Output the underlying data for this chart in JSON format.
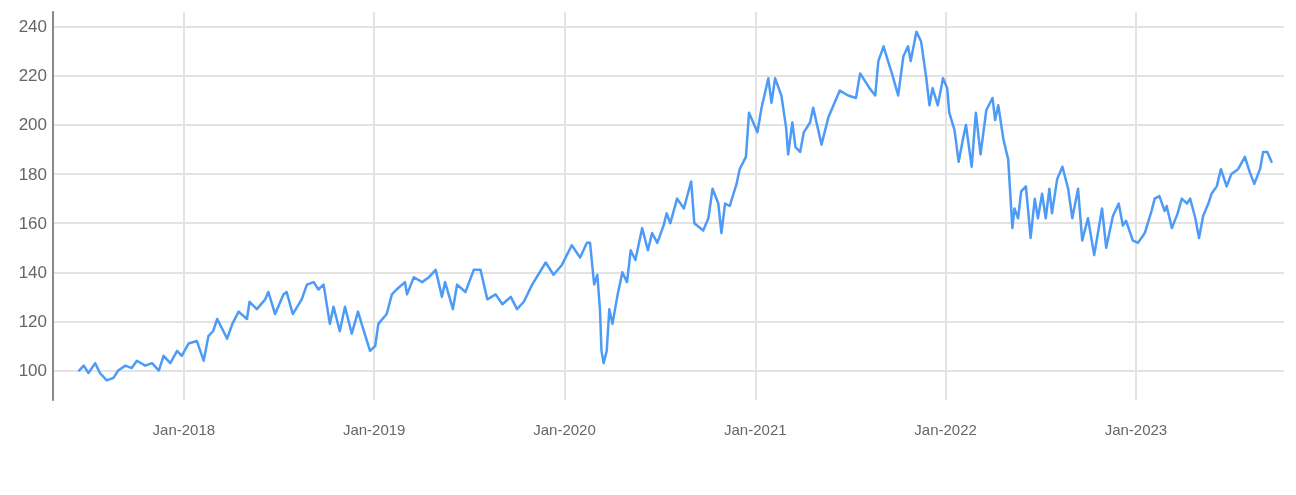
{
  "chart_data": {
    "type": "line",
    "xlim": [
      "2017-04-25",
      "2023-10-12"
    ],
    "xticks": [
      {
        "value": "2018-01-01",
        "label": "Jan-2018"
      },
      {
        "value": "2019-01-01",
        "label": "Jan-2019"
      },
      {
        "value": "2020-01-01",
        "label": "Jan-2020"
      },
      {
        "value": "2021-01-01",
        "label": "Jan-2021"
      },
      {
        "value": "2022-01-01",
        "label": "Jan-2022"
      },
      {
        "value": "2023-01-01",
        "label": "Jan-2023"
      }
    ],
    "ylim": [
      88,
      246
    ],
    "yticks": [
      100,
      120,
      140,
      160,
      180,
      200,
      220,
      240
    ],
    "grid": true,
    "marker": "none",
    "line_style": "solid",
    "series": [
      {
        "color": "#4d9bf7",
        "x": [
          "2017-06-14",
          "2017-06-23",
          "2017-07-02",
          "2017-07-15",
          "2017-07-24",
          "2017-08-06",
          "2017-08-19",
          "2017-08-28",
          "2017-09-11",
          "2017-09-23",
          "2017-10-03",
          "2017-10-19",
          "2017-11-01",
          "2017-11-14",
          "2017-11-23",
          "2017-12-06",
          "2017-12-19",
          "2017-12-28",
          "2018-01-10",
          "2018-01-26",
          "2018-02-08",
          "2018-02-17",
          "2018-02-26",
          "2018-03-06",
          "2018-03-25",
          "2018-04-04",
          "2018-04-16",
          "2018-05-02",
          "2018-05-07",
          "2018-05-21",
          "2018-06-06",
          "2018-06-12",
          "2018-06-25",
          "2018-07-11",
          "2018-07-17",
          "2018-07-29",
          "2018-08-15",
          "2018-08-25",
          "2018-09-07",
          "2018-09-16",
          "2018-09-26",
          "2018-10-08",
          "2018-10-15",
          "2018-10-27",
          "2018-11-06",
          "2018-11-19",
          "2018-12-01",
          "2018-12-08",
          "2018-12-24",
          "2019-01-03",
          "2019-01-09",
          "2019-01-25",
          "2019-02-04",
          "2019-02-13",
          "2019-03-01",
          "2019-03-05",
          "2019-03-18",
          "2019-04-03",
          "2019-04-16",
          "2019-04-29",
          "2019-05-11",
          "2019-05-17",
          "2019-06-01",
          "2019-06-09",
          "2019-06-25",
          "2019-07-11",
          "2019-07-24",
          "2019-08-06",
          "2019-08-22",
          "2019-09-04",
          "2019-09-20",
          "2019-10-02",
          "2019-10-15",
          "2019-10-31",
          "2019-11-26",
          "2019-12-11",
          "2019-12-27",
          "2020-01-15",
          "2020-01-31",
          "2020-02-13",
          "2020-02-19",
          "2020-02-27",
          "2020-03-04",
          "2020-03-09",
          "2020-03-12",
          "2020-03-16",
          "2020-03-22",
          "2020-03-27",
          "2020-04-02",
          "2020-04-12",
          "2020-04-21",
          "2020-04-30",
          "2020-05-07",
          "2020-05-16",
          "2020-05-29",
          "2020-06-09",
          "2020-06-17",
          "2020-06-27",
          "2020-07-09",
          "2020-07-15",
          "2020-07-22",
          "2020-08-04",
          "2020-08-17",
          "2020-08-31",
          "2020-09-06",
          "2020-09-23",
          "2020-10-03",
          "2020-10-11",
          "2020-10-22",
          "2020-10-28",
          "2020-11-04",
          "2020-11-13",
          "2020-11-26",
          "2020-12-02",
          "2020-12-14",
          "2020-12-20",
          "2021-01-05",
          "2021-01-13",
          "2021-01-26",
          "2021-02-01",
          "2021-02-08",
          "2021-02-20",
          "2021-03-01",
          "2021-03-05",
          "2021-03-13",
          "2021-03-19",
          "2021-03-28",
          "2021-04-04",
          "2021-04-16",
          "2021-04-22",
          "2021-05-08",
          "2021-05-21",
          "2021-06-12",
          "2021-06-28",
          "2021-07-13",
          "2021-07-21",
          "2021-08-08",
          "2021-08-19",
          "2021-08-25",
          "2021-09-04",
          "2021-09-14",
          "2021-09-20",
          "2021-10-02",
          "2021-10-12",
          "2021-10-21",
          "2021-10-26",
          "2021-11-06",
          "2021-11-15",
          "2021-11-25",
          "2021-12-01",
          "2021-12-07",
          "2021-12-17",
          "2021-12-27",
          "2022-01-04",
          "2022-01-08",
          "2022-01-18",
          "2022-01-26",
          "2022-02-03",
          "2022-02-09",
          "2022-02-20",
          "2022-02-28",
          "2022-03-09",
          "2022-03-20",
          "2022-04-01",
          "2022-04-06",
          "2022-04-12",
          "2022-04-22",
          "2022-05-01",
          "2022-05-09",
          "2022-05-13",
          "2022-05-20",
          "2022-05-26",
          "2022-06-04",
          "2022-06-13",
          "2022-06-21",
          "2022-06-27",
          "2022-07-05",
          "2022-07-12",
          "2022-07-19",
          "2022-07-24",
          "2022-08-03",
          "2022-08-13",
          "2022-08-24",
          "2022-09-01",
          "2022-09-12",
          "2022-09-20",
          "2022-10-01",
          "2022-10-13",
          "2022-10-28",
          "2022-11-05",
          "2022-11-18",
          "2022-11-29",
          "2022-12-07",
          "2022-12-13",
          "2022-12-26",
          "2023-01-05",
          "2023-01-18",
          "2023-01-31",
          "2023-02-06",
          "2023-02-15",
          "2023-02-25",
          "2023-03-01",
          "2023-03-11",
          "2023-03-22",
          "2023-03-30",
          "2023-04-09",
          "2023-04-15",
          "2023-04-25",
          "2023-05-02",
          "2023-05-10",
          "2023-05-20",
          "2023-05-26",
          "2023-06-05",
          "2023-06-13",
          "2023-06-24",
          "2023-07-03",
          "2023-07-16",
          "2023-07-29",
          "2023-08-07",
          "2023-08-16",
          "2023-08-27",
          "2023-09-02",
          "2023-09-10",
          "2023-09-18"
        ],
        "values": [
          100,
          102,
          99,
          103,
          99,
          96,
          97,
          100,
          102,
          101,
          104,
          102,
          103,
          100,
          106,
          103,
          108,
          106,
          111,
          112,
          104,
          114,
          116,
          121,
          113,
          119,
          124,
          121,
          128,
          125,
          129,
          132,
          123,
          131,
          132,
          123,
          129,
          135,
          136,
          133,
          135,
          119,
          126,
          116,
          126,
          115,
          124,
          119,
          108,
          110,
          119,
          123,
          131,
          133,
          136,
          131,
          138,
          136,
          138,
          141,
          130,
          136,
          125,
          135,
          132,
          141,
          141,
          129,
          131,
          127,
          130,
          125,
          128,
          135,
          144,
          139,
          143,
          151,
          146,
          152,
          152,
          135,
          139,
          125,
          108,
          103,
          108,
          125,
          119,
          131,
          140,
          136,
          149,
          145,
          158,
          149,
          156,
          152,
          159,
          164,
          160,
          170,
          166,
          177,
          160,
          157,
          162,
          174,
          168,
          156,
          168,
          167,
          176,
          182,
          187,
          205,
          197,
          207,
          219,
          209,
          219,
          212,
          199,
          188,
          201,
          191,
          189,
          197,
          201,
          207,
          192,
          203,
          214,
          212,
          211,
          221,
          215,
          212,
          226,
          232,
          225,
          221,
          212,
          228,
          232,
          226,
          238,
          234,
          219,
          208,
          215,
          208,
          219,
          215,
          205,
          198,
          185,
          194,
          200,
          183,
          205,
          188,
          206,
          211,
          202,
          208,
          194,
          186,
          158,
          166,
          162,
          173,
          175,
          154,
          170,
          162,
          172,
          162,
          174,
          164,
          178,
          183,
          174,
          162,
          174,
          153,
          162,
          147,
          166,
          150,
          163,
          168,
          159,
          161,
          153,
          152,
          156,
          165,
          170,
          171,
          165,
          167,
          158,
          164,
          170,
          168,
          170,
          162,
          154,
          163,
          168,
          172,
          175,
          182,
          175,
          180,
          182,
          187,
          181,
          176,
          182,
          189,
          189,
          185
        ]
      }
    ]
  }
}
